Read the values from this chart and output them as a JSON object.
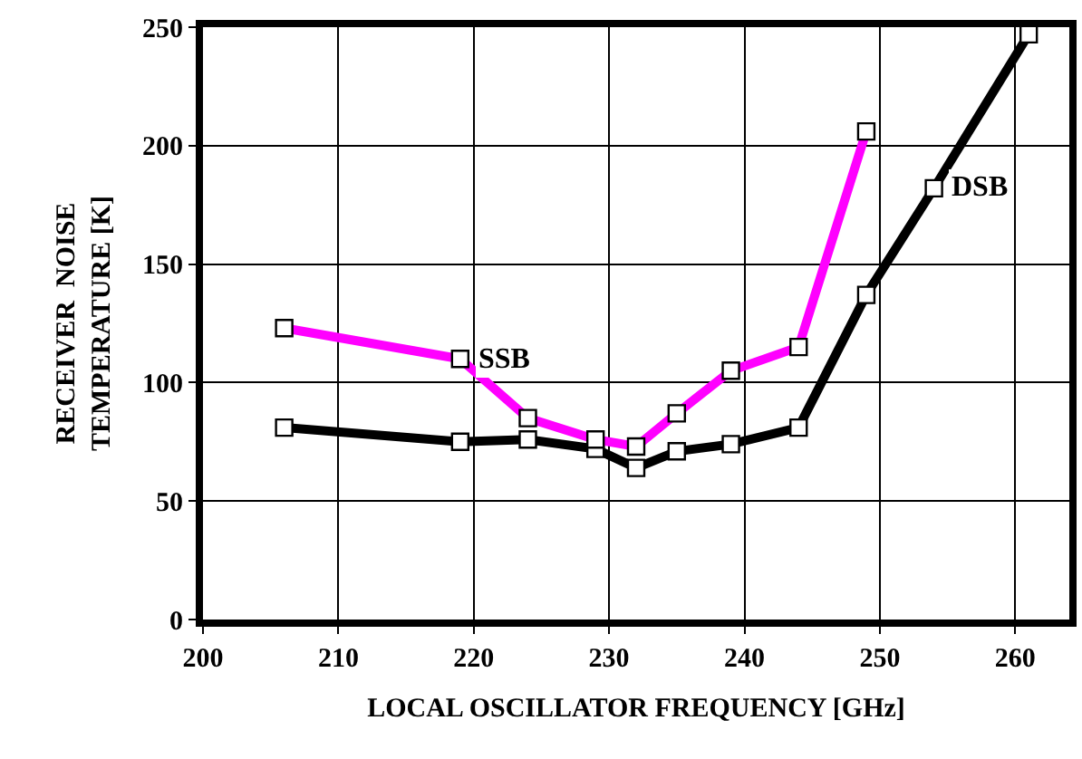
{
  "chart_data": {
    "type": "line",
    "xlabel": "LOCAL OSCILLATOR FREQUENCY [GHz]",
    "ylabel": "RECEIVER  NOISE\nTEMPERATURE [K]",
    "xlim": [
      200,
      264
    ],
    "xticks": [
      200,
      210,
      220,
      230,
      240,
      250,
      260
    ],
    "ylim": [
      0,
      250
    ],
    "yticks": [
      0,
      50,
      100,
      150,
      200,
      250
    ],
    "grid": true,
    "legend": false,
    "marker": "square",
    "line_style": "solid",
    "series": [
      {
        "color": "#ff00ff",
        "x": [
          206,
          219,
          224,
          229,
          232,
          235,
          239,
          244,
          249
        ],
        "values": [
          123,
          110,
          85,
          76,
          73,
          87,
          105,
          115,
          206
        ]
      },
      {
        "color": "#000000",
        "x": [
          206,
          219,
          224,
          229,
          232,
          235,
          239,
          244,
          249,
          254,
          261
        ],
        "values": [
          81,
          75,
          76,
          72,
          64,
          71,
          74,
          81,
          137,
          182,
          247
        ]
      }
    ],
    "annotations": [
      {
        "text": "SSB",
        "x": 219,
        "y": 110
      },
      {
        "text": "DSB",
        "x": 254,
        "y": 182
      }
    ]
  }
}
